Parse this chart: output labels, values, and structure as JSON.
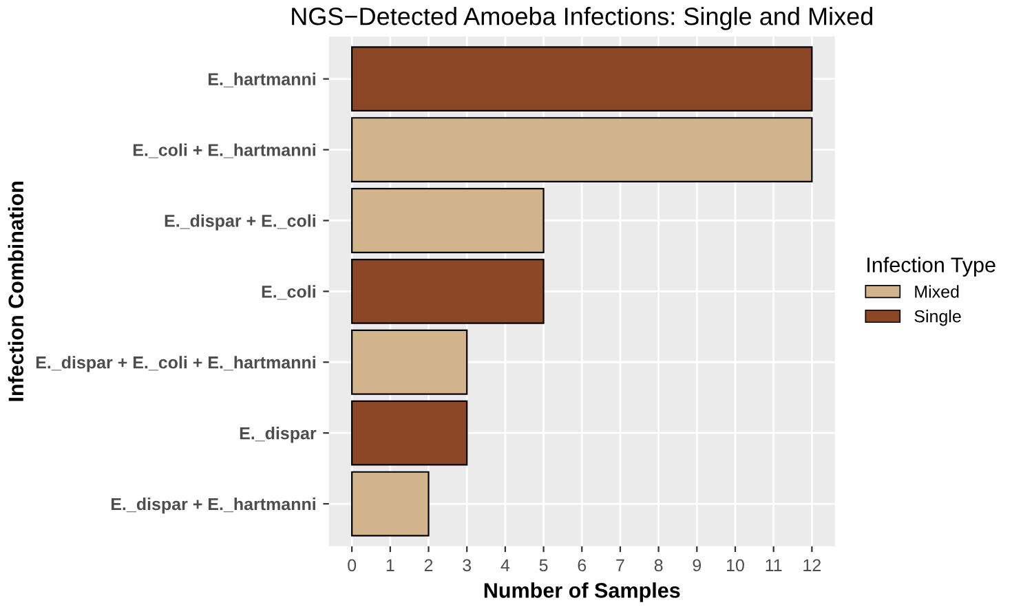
{
  "chart_data": {
    "type": "bar",
    "orientation": "horizontal",
    "stacked": true,
    "title": "NGS−Detected Amoeba Infections: Single and Mixed",
    "xlabel": "Number of Samples",
    "ylabel": "Infection Combination",
    "categories": [
      "E._hartmanni",
      "E._coli + E._hartmanni",
      "E._dispar + E._coli",
      "E._coli",
      "E._dispar + E._coli + E._hartmanni",
      "E._dispar",
      "E._dispar + E._hartmanni"
    ],
    "series": [
      {
        "name": "Mixed",
        "color": "#d2b48c",
        "values": [
          null,
          12,
          5,
          null,
          3,
          null,
          2
        ]
      },
      {
        "name": "Single",
        "color": "#8b4726",
        "values": [
          12,
          null,
          null,
          5,
          null,
          3,
          null
        ]
      }
    ],
    "legend_title": "Infection Type",
    "legend": "right",
    "xlim": [
      -0.6,
      12.6
    ],
    "xticks": [
      0,
      1,
      2,
      3,
      4,
      5,
      6,
      7,
      8,
      9,
      10,
      11,
      12
    ],
    "grid": true
  }
}
